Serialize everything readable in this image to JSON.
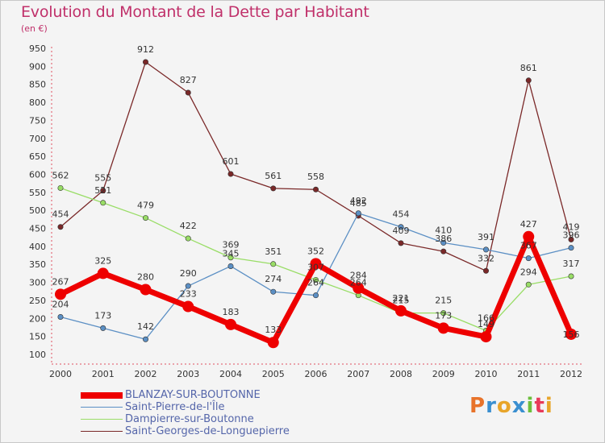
{
  "header": {
    "title": "Evolution du Montant de la Dette par Habitant",
    "subtitle": "(en €)"
  },
  "brand": {
    "logo_text": "Proxiti"
  },
  "colors": {
    "title": "#c0306a",
    "legend_text": "#5566aa",
    "BLANZAY-SUR-BOUTONNE": "#ee0000",
    "Saint-Pierre-de-l'Île": "#5b8fc4",
    "Dampierre-sur-Boutonne": "#99dd66",
    "Saint-Georges-de-Longuepierre": "#7a2828"
  },
  "chart_data": {
    "type": "line",
    "title": "Evolution du Montant de la Dette par Habitant",
    "subtitle": "(en €)",
    "x": [
      "2000",
      "2001",
      "2002",
      "2003",
      "2004",
      "2005",
      "2006",
      "2007",
      "2008",
      "2009",
      "2010",
      "2011",
      "2012"
    ],
    "ylim": [
      100,
      950
    ],
    "yticks": [
      100,
      150,
      200,
      250,
      300,
      350,
      400,
      450,
      500,
      550,
      600,
      650,
      700,
      750,
      800,
      850,
      900,
      950
    ],
    "grid": false,
    "legend": "bottom-left",
    "series": [
      {
        "name": "BLANZAY-SUR-BOUTONNE",
        "values": [
          267,
          325,
          280,
          233,
          183,
          133,
          352,
          284,
          221,
          173,
          149,
          427,
          156
        ]
      },
      {
        "name": "Saint-Pierre-de-l'Île",
        "values": [
          204,
          173,
          142,
          290,
          345,
          274,
          264,
          492,
          454,
          410,
          391,
          367,
          396
        ]
      },
      {
        "name": "Dampierre-sur-Boutonne",
        "values": [
          562,
          521,
          479,
          422,
          369,
          351,
          307,
          264,
          215,
          215,
          166,
          294,
          317
        ]
      },
      {
        "name": "Saint-Georges-de-Longuepierre",
        "values": [
          454,
          555,
          912,
          827,
          601,
          561,
          558,
          485,
          409,
          386,
          332,
          861,
          419
        ]
      }
    ]
  }
}
